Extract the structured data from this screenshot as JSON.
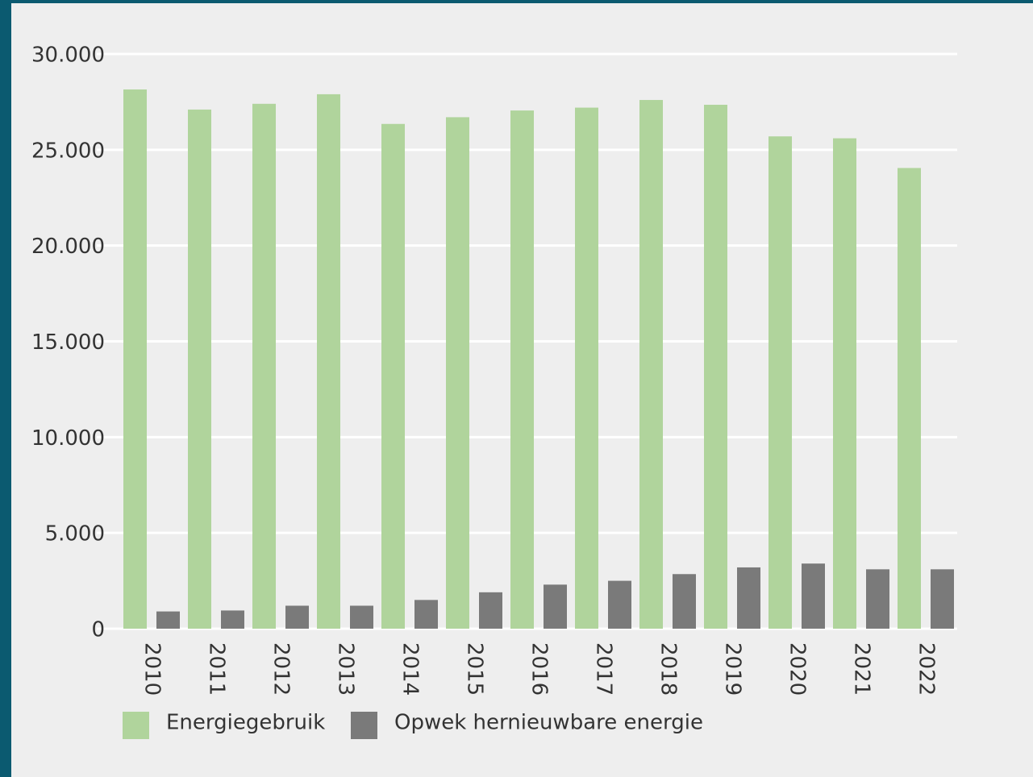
{
  "chart_data": {
    "type": "bar",
    "categories": [
      "2010",
      "2011",
      "2012",
      "2013",
      "2014",
      "2015",
      "2016",
      "2017",
      "2018",
      "2019",
      "2020",
      "2021",
      "2022"
    ],
    "series": [
      {
        "name": "Energiegebruik",
        "color": "#b0d49c",
        "values": [
          28150,
          27100,
          27400,
          27900,
          26350,
          26700,
          27050,
          27200,
          27600,
          27350,
          25700,
          25600,
          24050
        ]
      },
      {
        "name": "Opwek hernieuwbare energie",
        "color": "#7a7a7a",
        "values": [
          900,
          950,
          1200,
          1200,
          1500,
          1900,
          2300,
          2500,
          2850,
          3200,
          3400,
          3100,
          3100
        ]
      }
    ],
    "ylim": [
      0,
      30000
    ],
    "yticks": [
      0,
      {
        "value": 5000,
        "label": "5.000"
      },
      {
        "value": 10000,
        "label": "10.000"
      },
      {
        "value": 15000,
        "label": "15.000"
      },
      {
        "value": 20000,
        "label": "20.000"
      },
      {
        "value": 25000,
        "label": "25.000"
      },
      {
        "value": 30000,
        "label": "30.000"
      }
    ],
    "grid": true,
    "legend": "bottom"
  }
}
